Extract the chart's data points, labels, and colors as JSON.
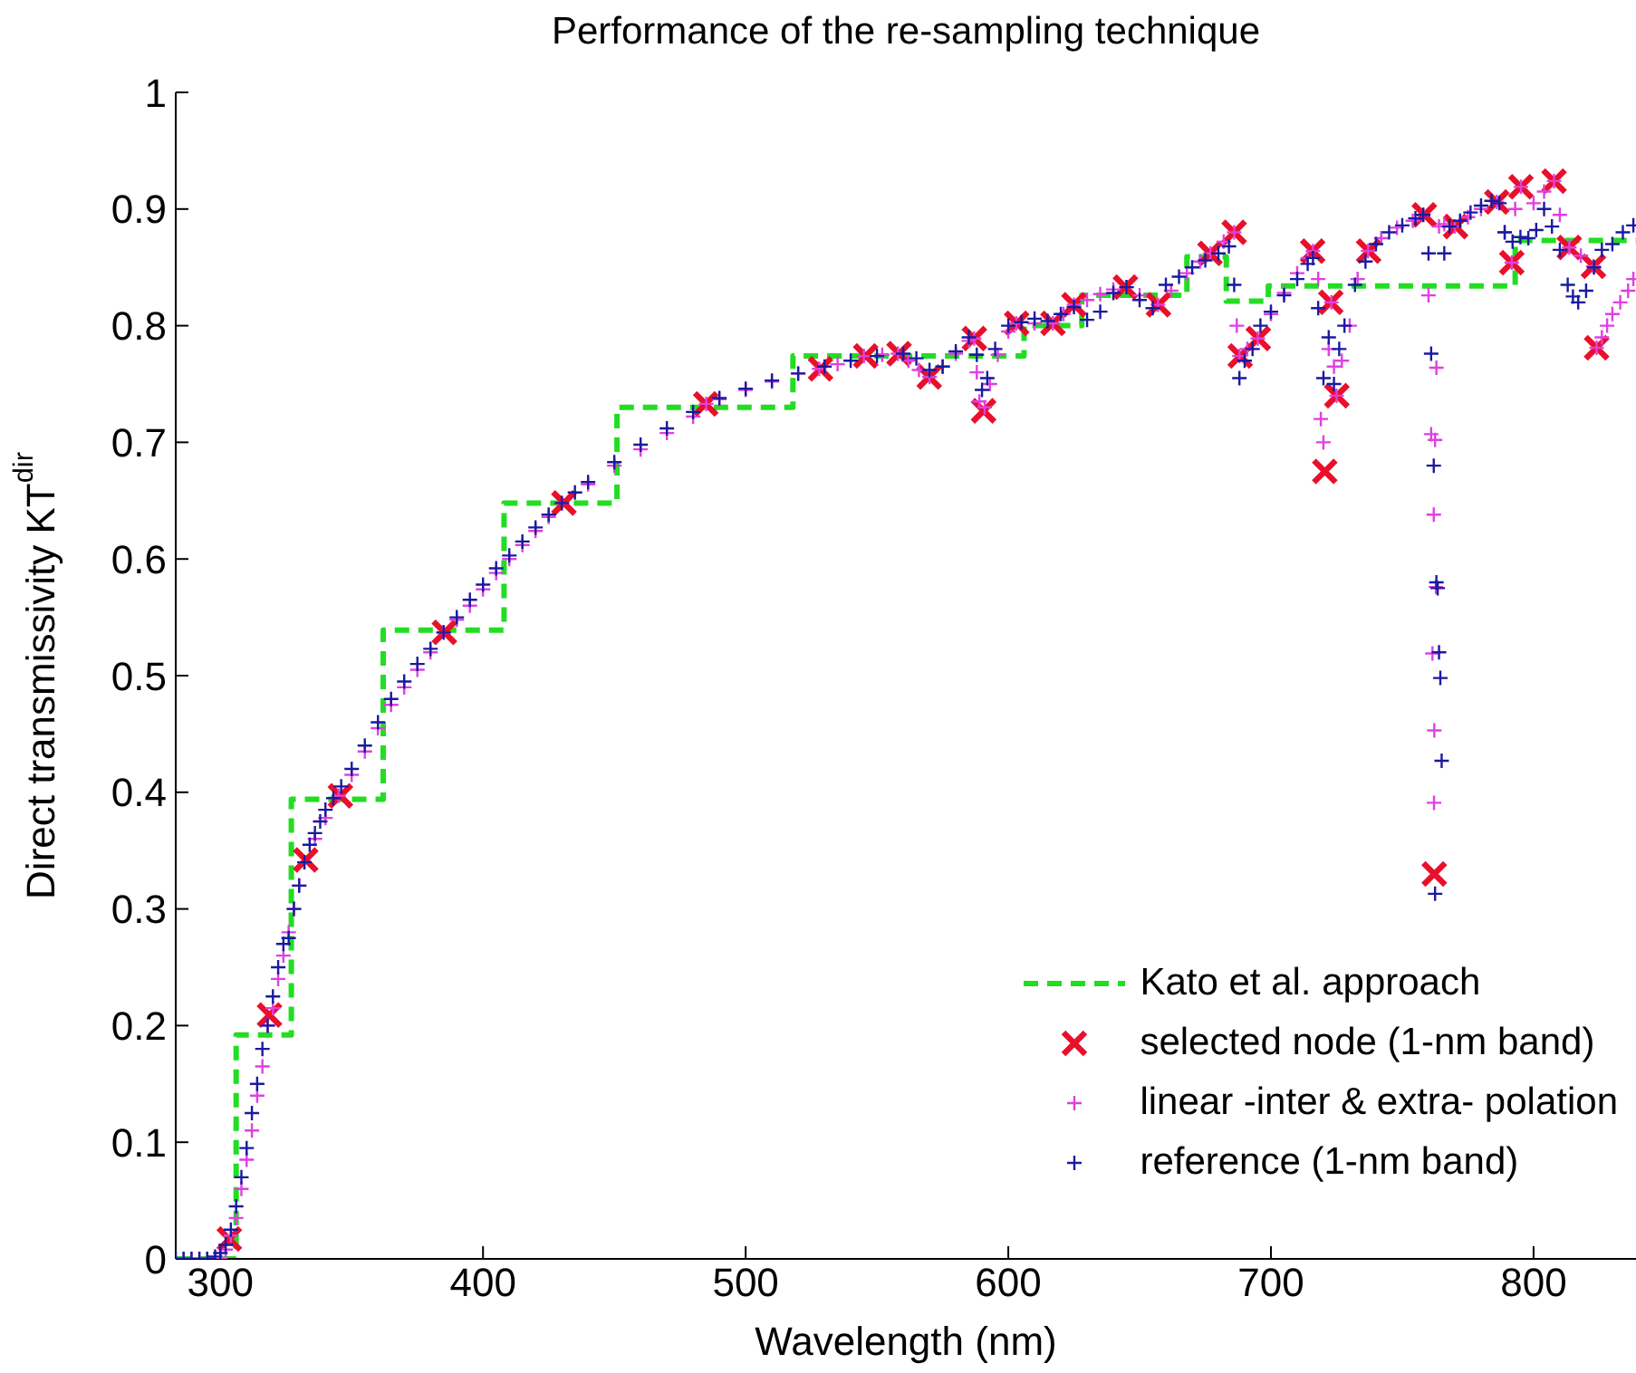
{
  "chart_data": {
    "type": "scatter",
    "title": "Performance of the re-sampling technique",
    "xlabel": "Wavelength (nm)",
    "ylabel": "Direct transmissivity KT$^{dir}$",
    "xlim": [
      283,
      839
    ],
    "xticks": [
      300,
      400,
      500,
      600,
      700,
      800
    ],
    "ylim": [
      0,
      1
    ],
    "yticks": [
      0,
      0.1,
      0.2,
      0.3,
      0.4,
      0.5,
      0.6,
      0.7,
      0.8,
      0.9,
      1
    ],
    "grid": false,
    "legend": "bottom right",
    "series": [
      {
        "name": "Kato et al. approach",
        "type": "step",
        "color": "#22dd22",
        "line_style": "dashed",
        "marker": "none",
        "x": [
          283,
          306,
          327,
          362,
          408,
          451,
          518,
          606,
          628,
          668,
          683,
          699,
          793,
          839
        ],
        "values": [
          0,
          0.192,
          0.394,
          0.539,
          0.648,
          0.73,
          0.774,
          0.8,
          0.826,
          0.859,
          0.821,
          0.834,
          0.873,
          0.873
        ]
      },
      {
        "name": "selected node (1-nm band)",
        "color": "#e8102a",
        "marker": "cross",
        "x": [
          303.4,
          318.7,
          332.5,
          345.7,
          385.3,
          430.8,
          484.8,
          528.5,
          545.7,
          558.4,
          569.9,
          587.1,
          590.6,
          603.2,
          617,
          625,
          644.6,
          657.2,
          676.8,
          686,
          688.3,
          695.2,
          715.9,
          722.8,
          725.1,
          720.5,
          737.2,
          758.4,
          762.2,
          770.3,
          786,
          791.7,
          795.2,
          807.8,
          813.6,
          822.8,
          824
        ],
        "values": [
          0.017,
          0.209,
          0.342,
          0.397,
          0.537,
          0.648,
          0.733,
          0.763,
          0.774,
          0.776,
          0.756,
          0.789,
          0.727,
          0.802,
          0.802,
          0.818,
          0.833,
          0.818,
          0.862,
          0.88,
          0.774,
          0.789,
          0.864,
          0.82,
          0.74,
          0.675,
          0.864,
          0.895,
          0.33,
          0.885,
          0.906,
          0.854,
          0.919,
          0.924,
          0.867,
          0.851,
          0.781
        ]
      },
      {
        "name": "linear -inter & extra- polation",
        "color": "#e040e0",
        "marker": "plus",
        "x": [
          283,
          286,
          289,
          292,
          295,
          298,
          300,
          302,
          304,
          306,
          308,
          310,
          312,
          314,
          316,
          318,
          320,
          322,
          324,
          326,
          328,
          330,
          332,
          336,
          340,
          345,
          350,
          355,
          360,
          365,
          370,
          375,
          380,
          385,
          390,
          395,
          400,
          405,
          410,
          415,
          420,
          425,
          430,
          440,
          450,
          460,
          470,
          480,
          485,
          490,
          500,
          510,
          520,
          528,
          535,
          545,
          552,
          558,
          562,
          566,
          570,
          575,
          580,
          585,
          587,
          588,
          589,
          591,
          593,
          596,
          600,
          603,
          610,
          617,
          621,
          625,
          630,
          635,
          640,
          645,
          650,
          657,
          662,
          668,
          673,
          677,
          682,
          686,
          687,
          688,
          691,
          695,
          700,
          705,
          710,
          714,
          716,
          718,
          719,
          720,
          722,
          723,
          724,
          725,
          727,
          730,
          733,
          737,
          742,
          748,
          754,
          758,
          760,
          761,
          762.5,
          763,
          762,
          762.8,
          761.5,
          762.2,
          762.1,
          764,
          766,
          770,
          775,
          780,
          786,
          789,
          791.7,
          793,
          795.2,
          800,
          804,
          807.8,
          810,
          813.6,
          818,
          822.8,
          824,
          826,
          828,
          830,
          833,
          836,
          838
        ],
        "values": [
          0,
          0,
          0,
          0,
          0,
          0,
          0,
          0.008,
          0.02,
          0.035,
          0.06,
          0.085,
          0.11,
          0.14,
          0.165,
          0.2,
          0.215,
          0.24,
          0.26,
          0.28,
          0.3,
          0.32,
          0.34,
          0.36,
          0.378,
          0.397,
          0.415,
          0.435,
          0.455,
          0.475,
          0.49,
          0.505,
          0.52,
          0.537,
          0.548,
          0.56,
          0.574,
          0.588,
          0.6,
          0.612,
          0.624,
          0.636,
          0.648,
          0.664,
          0.68,
          0.694,
          0.708,
          0.722,
          0.733,
          0.737,
          0.745,
          0.752,
          0.759,
          0.763,
          0.767,
          0.774,
          0.775,
          0.776,
          0.77,
          0.762,
          0.756,
          0.765,
          0.776,
          0.787,
          0.789,
          0.76,
          0.735,
          0.73,
          0.75,
          0.775,
          0.795,
          0.802,
          0.802,
          0.802,
          0.81,
          0.818,
          0.822,
          0.827,
          0.831,
          0.833,
          0.826,
          0.818,
          0.83,
          0.845,
          0.855,
          0.862,
          0.872,
          0.88,
          0.8,
          0.774,
          0.78,
          0.789,
          0.81,
          0.828,
          0.845,
          0.858,
          0.864,
          0.84,
          0.72,
          0.7,
          0.78,
          0.82,
          0.765,
          0.74,
          0.77,
          0.8,
          0.84,
          0.864,
          0.875,
          0.884,
          0.89,
          0.895,
          0.826,
          0.707,
          0.702,
          0.764,
          0.638,
          0.576,
          0.519,
          0.453,
          0.391,
          0.885,
          0.887,
          0.885,
          0.893,
          0.9,
          0.906,
          0.88,
          0.854,
          0.9,
          0.919,
          0.905,
          0.915,
          0.924,
          0.895,
          0.867,
          0.86,
          0.851,
          0.781,
          0.79,
          0.8,
          0.81,
          0.82,
          0.83,
          0.84
        ]
      },
      {
        "name": "reference (1-nm band)",
        "color": "#1a1aa0",
        "marker": "plus",
        "x": [
          283,
          286,
          289,
          292,
          295,
          298,
          300,
          302,
          304,
          306,
          308,
          310,
          312,
          314,
          316,
          318,
          320,
          322,
          324,
          326,
          328,
          330,
          332,
          334,
          336,
          338,
          340,
          343,
          346,
          350,
          355,
          360,
          365,
          370,
          375,
          380,
          385,
          390,
          395,
          400,
          405,
          410,
          415,
          420,
          425,
          430,
          435,
          440,
          450,
          460,
          470,
          480,
          490,
          500,
          510,
          520,
          530,
          540,
          550,
          560,
          565,
          570,
          575,
          580,
          585,
          588,
          590,
          592,
          595,
          600,
          605,
          610,
          615,
          620,
          625,
          630,
          635,
          640,
          645,
          650,
          655,
          660,
          665,
          670,
          675,
          680,
          684,
          686,
          688,
          690,
          693,
          696,
          700,
          705,
          710,
          714,
          716,
          718,
          720,
          722,
          724,
          726,
          728,
          732,
          736,
          740,
          745,
          750,
          755,
          758,
          760,
          761,
          762,
          763,
          763.5,
          764,
          764.5,
          765,
          762.5,
          766,
          768,
          772,
          776,
          780,
          784,
          787,
          789,
          792,
          795,
          798,
          801,
          804,
          807,
          810,
          813,
          815,
          817,
          820,
          823,
          826,
          830,
          834,
          838
        ],
        "values": [
          0,
          0,
          0,
          0,
          0,
          0.002,
          0.005,
          0.012,
          0.025,
          0.045,
          0.07,
          0.095,
          0.125,
          0.15,
          0.18,
          0.2,
          0.225,
          0.25,
          0.27,
          0.275,
          0.3,
          0.32,
          0.34,
          0.355,
          0.365,
          0.375,
          0.385,
          0.395,
          0.405,
          0.42,
          0.44,
          0.46,
          0.48,
          0.495,
          0.51,
          0.523,
          0.537,
          0.55,
          0.565,
          0.578,
          0.592,
          0.603,
          0.615,
          0.627,
          0.638,
          0.648,
          0.657,
          0.666,
          0.683,
          0.698,
          0.712,
          0.726,
          0.738,
          0.746,
          0.753,
          0.759,
          0.765,
          0.77,
          0.774,
          0.776,
          0.772,
          0.762,
          0.765,
          0.778,
          0.79,
          0.775,
          0.745,
          0.755,
          0.78,
          0.8,
          0.803,
          0.806,
          0.804,
          0.81,
          0.816,
          0.805,
          0.812,
          0.828,
          0.833,
          0.822,
          0.815,
          0.835,
          0.842,
          0.85,
          0.856,
          0.862,
          0.868,
          0.835,
          0.755,
          0.77,
          0.78,
          0.8,
          0.812,
          0.826,
          0.84,
          0.853,
          0.858,
          0.815,
          0.755,
          0.79,
          0.75,
          0.78,
          0.8,
          0.835,
          0.855,
          0.87,
          0.88,
          0.886,
          0.892,
          0.895,
          0.862,
          0.776,
          0.68,
          0.58,
          0.575,
          0.52,
          0.498,
          0.427,
          0.313,
          0.862,
          0.885,
          0.89,
          0.897,
          0.903,
          0.907,
          0.905,
          0.88,
          0.872,
          0.876,
          0.875,
          0.882,
          0.9,
          0.885,
          0.865,
          0.835,
          0.825,
          0.82,
          0.83,
          0.85,
          0.865,
          0.87,
          0.88,
          0.886
        ]
      }
    ]
  }
}
